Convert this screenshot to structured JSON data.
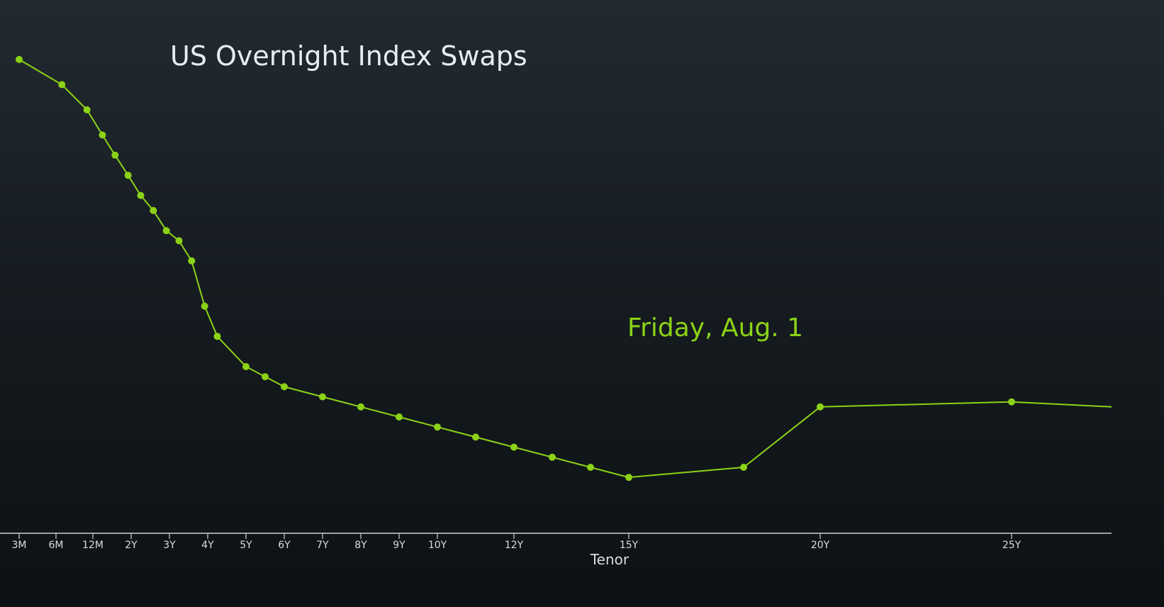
{
  "chart_data": {
    "type": "line",
    "title": "US Overnight Index Swaps",
    "xlabel": "Tenor",
    "ylabel": "",
    "x_unit": "years",
    "x_range": [
      0,
      28.4
    ],
    "y_range": [
      0,
      1
    ],
    "y_axis_visible": false,
    "grid": false,
    "legend_position": "center-right",
    "ticks": [
      {
        "x": 0.25,
        "label": "3M"
      },
      {
        "x": 0.5,
        "label": "6M"
      },
      {
        "x": 1,
        "label": "12M"
      },
      {
        "x": 2,
        "label": "2Y"
      },
      {
        "x": 3,
        "label": "3Y"
      },
      {
        "x": 4,
        "label": "4Y"
      },
      {
        "x": 5,
        "label": "5Y"
      },
      {
        "x": 6,
        "label": "6Y"
      },
      {
        "x": 7,
        "label": "7Y"
      },
      {
        "x": 8,
        "label": "8Y"
      },
      {
        "x": 9,
        "label": "9Y"
      },
      {
        "x": 10,
        "label": "10Y"
      },
      {
        "x": 12,
        "label": "12Y"
      },
      {
        "x": 15,
        "label": "15Y"
      },
      {
        "x": 20,
        "label": "20Y"
      },
      {
        "x": 25,
        "label": "25Y"
      }
    ],
    "series": [
      {
        "name": "Friday, Aug. 1",
        "color": "#8cd216",
        "style": "solid",
        "marker": "circle",
        "x": [
          0.25,
          0.58,
          0.92,
          1.25,
          1.58,
          1.92,
          2.25,
          2.58,
          2.92,
          3.25,
          3.58,
          3.92,
          4.25,
          5,
          5.5,
          6,
          7,
          8,
          9,
          10,
          11,
          12,
          13,
          14,
          15,
          18,
          20,
          25,
          28.4
        ],
        "y": [
          0.91,
          0.86,
          0.81,
          0.76,
          0.72,
          0.68,
          0.64,
          0.61,
          0.57,
          0.55,
          0.51,
          0.42,
          0.36,
          0.3,
          0.28,
          0.26,
          0.24,
          0.22,
          0.2,
          0.18,
          0.16,
          0.14,
          0.12,
          0.1,
          0.08,
          0.1,
          0.22,
          0.23,
          0.22
        ],
        "y_note": "normalized"
      }
    ]
  }
}
